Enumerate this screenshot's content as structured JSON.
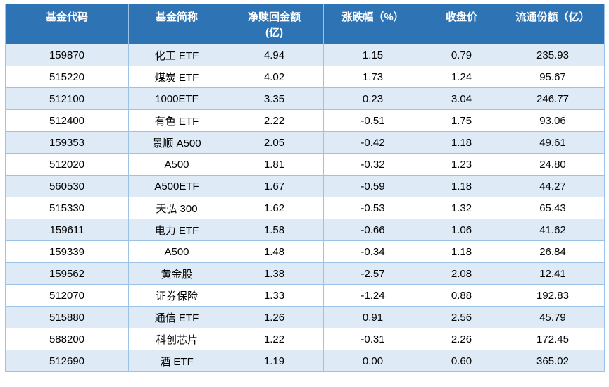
{
  "colors": {
    "header_bg": "#2E74B5",
    "header_text": "#FFFFFF",
    "row_bg": "#FFFFFF",
    "row_alt_bg": "#DEEAF6",
    "border": "#9CC2E5",
    "text": "#000000"
  },
  "table": {
    "headers": [
      {
        "line1": "基金代码",
        "line2": ""
      },
      {
        "line1": "基金简称",
        "line2": ""
      },
      {
        "line1": "净赎回金额",
        "line2": "(亿)"
      },
      {
        "line1": "涨跌幅（%）",
        "line2": ""
      },
      {
        "line1": "收盘价",
        "line2": ""
      },
      {
        "line1": "流通份额（亿）",
        "line2": ""
      }
    ]
  },
  "chart_data": {
    "type": "table",
    "columns": [
      "基金代码",
      "基金简称",
      "净赎回金额(亿)",
      "涨跌幅（%）",
      "收盘价",
      "流通份额（亿）"
    ],
    "rows": [
      [
        "159870",
        "化工 ETF",
        "4.94",
        "1.15",
        "0.79",
        "235.93"
      ],
      [
        "515220",
        "煤炭 ETF",
        "4.02",
        "1.73",
        "1.24",
        "95.67"
      ],
      [
        "512100",
        "1000ETF",
        "3.35",
        "0.23",
        "3.04",
        "246.77"
      ],
      [
        "512400",
        "有色 ETF",
        "2.22",
        "-0.51",
        "1.75",
        "93.06"
      ],
      [
        "159353",
        "景顺 A500",
        "2.05",
        "-0.42",
        "1.18",
        "49.61"
      ],
      [
        "512020",
        "A500",
        "1.81",
        "-0.32",
        "1.23",
        "24.80"
      ],
      [
        "560530",
        "A500ETF",
        "1.67",
        "-0.59",
        "1.18",
        "44.27"
      ],
      [
        "515330",
        "天弘 300",
        "1.62",
        "-0.53",
        "1.32",
        "65.43"
      ],
      [
        "159611",
        "电力 ETF",
        "1.58",
        "-0.66",
        "1.06",
        "41.62"
      ],
      [
        "159339",
        "A500",
        "1.48",
        "-0.34",
        "1.18",
        "26.84"
      ],
      [
        "159562",
        "黄金股",
        "1.38",
        "-2.57",
        "2.08",
        "12.41"
      ],
      [
        "512070",
        "证券保险",
        "1.33",
        "-1.24",
        "0.88",
        "192.83"
      ],
      [
        "515880",
        "通信 ETF",
        "1.26",
        "0.91",
        "2.56",
        "45.79"
      ],
      [
        "588200",
        "科创芯片",
        "1.22",
        "-0.31",
        "2.26",
        "172.45"
      ],
      [
        "512690",
        "酒 ETF",
        "1.19",
        "0.00",
        "0.60",
        "365.02"
      ]
    ]
  }
}
